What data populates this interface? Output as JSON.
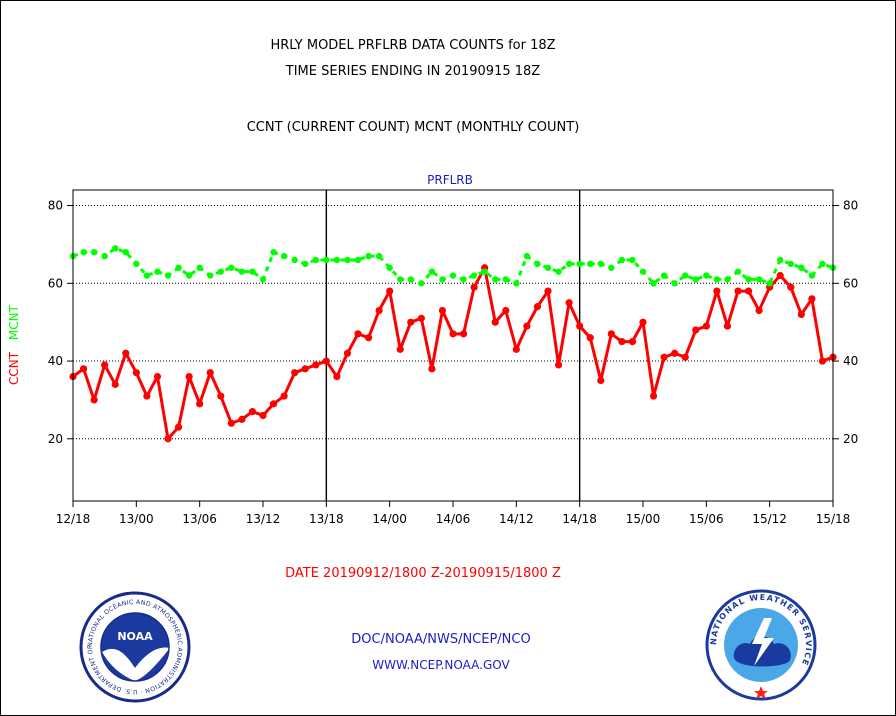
{
  "header": {
    "title_line1": "HRLY MODEL PRFLRB DATA COUNTS for 18Z",
    "title_line2": "TIME SERIES ENDING IN 20190915 18Z",
    "title_line3": "CCNT (CURRENT COUNT) MCNT (MONTHLY COUNT)"
  },
  "footer": {
    "date_range": "DATE 20190912/1800 Z-20190915/1800 Z",
    "credit_line1": "DOC/NOAA/NWS/NCEP/NCO",
    "credit_line2": "WWW.NCEP.NOAA.GOV"
  },
  "logos": {
    "noaa": {
      "icon": "noaa-logo-icon",
      "text": "NOAA",
      "ring_text": "NATIONAL OCEANIC AND ATMOSPHERIC ADMINISTRATION · U.S. DEPARTMENT OF COMMERCE"
    },
    "nws": {
      "icon": "nws-logo-icon",
      "ring_text": "NATIONAL WEATHER SERVICE"
    }
  },
  "chart_data": {
    "type": "line",
    "title": "PRFLRB",
    "ylabel_parts": [
      {
        "text": "CCNT",
        "color": "#ff0000"
      },
      {
        "text": "MCNT",
        "color": "#00ff00"
      }
    ],
    "ylim": [
      4,
      84
    ],
    "yticks": [
      20,
      40,
      60,
      80
    ],
    "xlim": [
      0,
      72
    ],
    "x_tick_labels": [
      "12/18",
      "13/00",
      "13/06",
      "13/12",
      "13/18",
      "14/00",
      "14/06",
      "14/12",
      "14/18",
      "15/00",
      "15/06",
      "15/12",
      "15/18"
    ],
    "x_tick_hours": [
      0,
      6,
      12,
      18,
      24,
      30,
      36,
      42,
      48,
      54,
      60,
      66,
      72
    ],
    "day_boundaries_hours": [
      24,
      48
    ],
    "grid": "horizontal-dotted",
    "series": [
      {
        "name": "CCNT",
        "color": "#ff0000",
        "marker": "circle",
        "values": [
          36,
          38,
          30,
          39,
          34,
          42,
          37,
          31,
          36,
          20,
          23,
          36,
          29,
          37,
          31,
          24,
          25,
          27,
          26,
          29,
          31,
          37,
          38,
          39,
          40,
          36,
          42,
          47,
          46,
          53,
          58,
          43,
          50,
          51,
          38,
          53,
          47,
          47,
          59,
          64,
          50,
          53,
          43,
          49,
          54,
          58,
          39,
          55,
          49,
          46,
          35,
          47,
          45,
          45,
          50,
          31,
          41,
          42,
          41,
          48,
          49,
          58,
          49,
          58,
          58,
          53,
          59,
          62,
          59,
          52,
          56,
          40,
          41
        ]
      },
      {
        "name": "MCNT",
        "color": "#00ff00",
        "marker": "circle",
        "values": [
          67,
          68,
          68,
          67,
          69,
          68,
          65,
          62,
          63,
          62,
          64,
          62,
          64,
          62,
          63,
          64,
          63,
          63,
          61,
          68,
          67,
          66,
          65,
          66,
          66,
          66,
          66,
          66,
          67,
          67,
          64,
          61,
          61,
          60,
          63,
          61,
          62,
          61,
          62,
          63,
          61,
          61,
          60,
          67,
          65,
          64,
          63,
          65,
          65,
          65,
          65,
          64,
          66,
          66,
          63,
          60,
          62,
          60,
          62,
          61,
          62,
          61,
          61,
          63,
          61,
          61,
          60,
          66,
          65,
          64,
          62,
          65,
          64
        ]
      }
    ]
  }
}
